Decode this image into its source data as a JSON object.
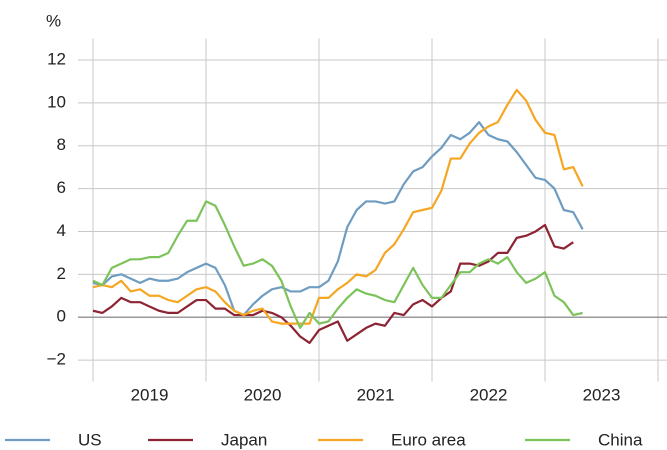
{
  "chart_data": {
    "type": "line",
    "y_unit_label": "%",
    "categories": [
      null,
      null,
      null,
      null,
      null,
      null,
      "2019",
      null,
      null,
      null,
      null,
      null,
      null,
      null,
      null,
      null,
      null,
      null,
      "2020",
      null,
      null,
      null,
      null,
      null,
      null,
      null,
      null,
      null,
      null,
      null,
      "2021",
      null,
      null,
      null,
      null,
      null,
      null,
      null,
      null,
      null,
      null,
      null,
      "2022",
      null,
      null,
      null,
      null,
      null,
      null,
      null,
      null,
      null,
      null,
      null,
      "2023",
      null,
      null,
      null,
      null,
      null
    ],
    "ylim": [
      -3,
      13
    ],
    "yticks": [
      {
        "value": -2,
        "label": "−2"
      },
      0,
      2,
      4,
      6,
      8,
      10,
      12
    ],
    "grid": true,
    "series": [
      {
        "name": "US",
        "color": "#6f9cc1",
        "values": [
          1.6,
          1.5,
          1.9,
          2.0,
          1.8,
          1.6,
          1.8,
          1.7,
          1.7,
          1.8,
          2.1,
          2.3,
          2.5,
          2.3,
          1.5,
          0.3,
          0.1,
          0.6,
          1.0,
          1.3,
          1.4,
          1.2,
          1.2,
          1.4,
          1.4,
          1.7,
          2.6,
          4.2,
          5.0,
          5.4,
          5.4,
          5.3,
          5.4,
          6.2,
          6.8,
          7.0,
          7.5,
          7.9,
          8.5,
          8.3,
          8.6,
          9.1,
          8.5,
          8.3,
          8.2,
          7.7,
          7.1,
          6.5,
          6.4,
          6.0,
          5.0,
          4.9,
          4.1,
          null,
          null,
          null,
          null,
          null,
          null,
          null
        ]
      },
      {
        "name": "Japan",
        "color": "#8c2433",
        "values": [
          0.3,
          0.2,
          0.5,
          0.9,
          0.7,
          0.7,
          0.5,
          0.3,
          0.2,
          0.2,
          0.5,
          0.8,
          0.8,
          0.4,
          0.4,
          0.1,
          0.1,
          0.1,
          0.3,
          0.2,
          0.0,
          -0.4,
          -0.9,
          -1.2,
          -0.6,
          -0.4,
          -0.2,
          -1.1,
          -0.8,
          -0.5,
          -0.3,
          -0.4,
          0.2,
          0.1,
          0.6,
          0.8,
          0.5,
          0.9,
          1.2,
          2.5,
          2.5,
          2.4,
          2.6,
          3.0,
          3.0,
          3.7,
          3.8,
          4.0,
          4.3,
          3.3,
          3.2,
          3.5,
          null,
          null,
          null,
          null,
          null,
          null,
          null,
          null
        ]
      },
      {
        "name": "Euro area",
        "color": "#f5a623",
        "values": [
          1.4,
          1.5,
          1.4,
          1.7,
          1.2,
          1.3,
          1.0,
          1.0,
          0.8,
          0.7,
          1.0,
          1.3,
          1.4,
          1.2,
          0.7,
          0.3,
          0.1,
          0.3,
          0.4,
          -0.2,
          -0.3,
          -0.3,
          -0.3,
          -0.3,
          0.9,
          0.9,
          1.3,
          1.6,
          2.0,
          1.9,
          2.2,
          3.0,
          3.4,
          4.1,
          4.9,
          5.0,
          5.1,
          5.9,
          7.4,
          7.4,
          8.1,
          8.6,
          8.9,
          9.1,
          9.9,
          10.6,
          10.1,
          9.2,
          8.6,
          8.5,
          6.9,
          7.0,
          6.1,
          null,
          null,
          null,
          null,
          null,
          null,
          null
        ]
      },
      {
        "name": "China",
        "color": "#7dc35b",
        "values": [
          1.7,
          1.5,
          2.3,
          2.5,
          2.7,
          2.7,
          2.8,
          2.8,
          3.0,
          3.8,
          4.5,
          4.5,
          5.4,
          5.2,
          4.3,
          3.3,
          2.4,
          2.5,
          2.7,
          2.4,
          1.7,
          0.5,
          -0.5,
          0.2,
          -0.3,
          -0.2,
          0.4,
          0.9,
          1.3,
          1.1,
          1.0,
          0.8,
          0.7,
          1.5,
          2.3,
          1.5,
          0.9,
          0.9,
          1.5,
          2.1,
          2.1,
          2.5,
          2.7,
          2.5,
          2.8,
          2.1,
          1.6,
          1.8,
          2.1,
          1.0,
          0.7,
          0.1,
          0.2,
          null,
          null,
          null,
          null,
          null,
          null,
          null
        ]
      }
    ]
  }
}
